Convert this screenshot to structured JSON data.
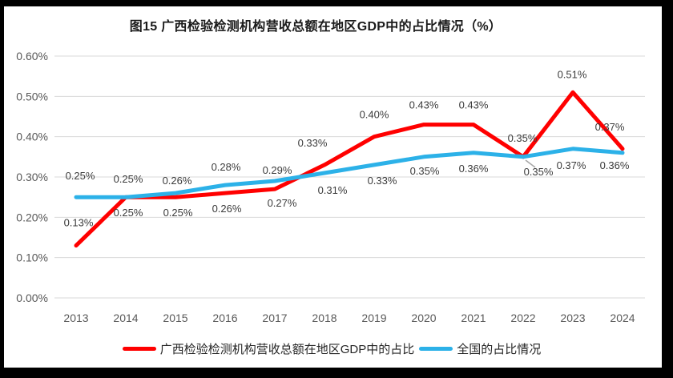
{
  "title": "图15 广西检验检测机构营收总额在地区GDP中的占比情况（%）",
  "colors": {
    "guangxi_line": "#FF0000",
    "national_line": "#2CB1E8",
    "gridline": "#D9D9D9",
    "axis_text": "#595959",
    "data_label_text": "#3b3b3b",
    "leader_line": "#A6A6A6",
    "frame": "#000000",
    "background": "#ffffff"
  },
  "chart_data": {
    "type": "line",
    "title": "图15 广西检验检测机构营收总额在地区GDP中的占比情况（%）",
    "categories": [
      "2013",
      "2014",
      "2015",
      "2016",
      "2017",
      "2018",
      "2019",
      "2020",
      "2021",
      "2022",
      "2023",
      "2024"
    ],
    "y_axis": {
      "min": 0,
      "max": 0.6,
      "tick_step": 0.1,
      "tick_labels": [
        "0.00%",
        "0.10%",
        "0.20%",
        "0.30%",
        "0.40%",
        "0.50%",
        "0.60%"
      ]
    },
    "grid": true,
    "legend_position": "bottom",
    "series": [
      {
        "name": "广西检验检测机构营收总额在地区GDP中的占比",
        "color": "#FF0000",
        "values": [
          0.13,
          0.25,
          0.25,
          0.26,
          0.27,
          0.33,
          0.4,
          0.43,
          0.43,
          0.35,
          0.51,
          0.37
        ],
        "labels": [
          "0.13%",
          "0.25%",
          "0.25%",
          "0.26%",
          "0.27%",
          "0.33%",
          "0.40%",
          "0.43%",
          "0.43%",
          "0.35%",
          "0.51%",
          "0.37%"
        ]
      },
      {
        "name": "全国的占比情况",
        "color": "#2CB1E8",
        "values": [
          0.25,
          0.25,
          0.26,
          0.28,
          0.29,
          0.31,
          0.33,
          0.35,
          0.36,
          0.35,
          0.37,
          0.36
        ],
        "labels": [
          "0.25%",
          "0.25%",
          "0.26%",
          "0.28%",
          "0.29%",
          "0.31%",
          "0.33%",
          "0.35%",
          "0.36%",
          "0.35%",
          "0.37%",
          "0.36%"
        ]
      }
    ]
  }
}
